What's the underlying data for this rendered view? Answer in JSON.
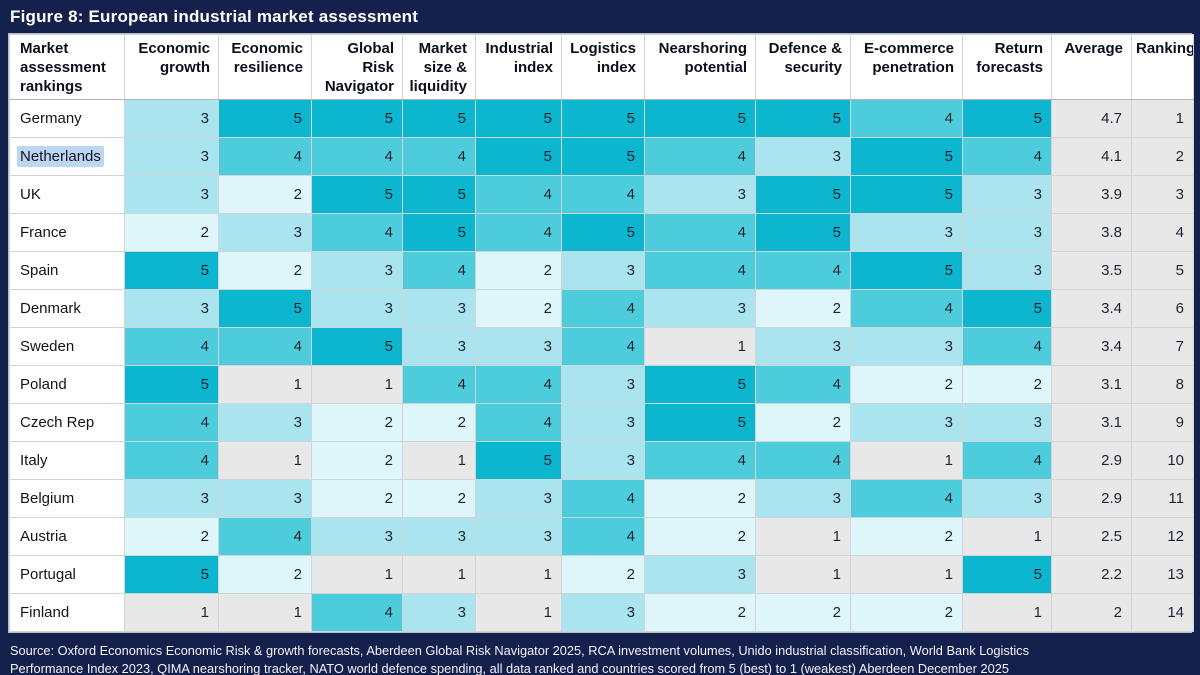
{
  "figure": {
    "title": "Figure 8: European industrial market assessment"
  },
  "source": {
    "lines": [
      "Source: Oxford Economics Economic Risk & growth forecasts, Aberdeen Global Risk Navigator 2025, RCA investment volumes, Unido industrial classification, World Bank Logistics",
      "Performance Index 2023, QIMA nearshoring tracker, NATO world defence spending, all data ranked and countries scored from 5 (best) to 1 (weakest) Aberdeen December 2025"
    ]
  },
  "colors": {
    "background_navy": "#15214D",
    "card_bg": "#FFFFFF",
    "summary_bg": "#E8E8E9",
    "selection_highlight": "#BCD7F2",
    "scale": {
      "1": "#E8E8E9",
      "2": "#DEF5FA",
      "3": "#AAE4EE",
      "4": "#4DCCDC",
      "5": "#0CB6CF"
    }
  },
  "table": {
    "headers": [
      "Market assessment rankings",
      "Economic growth",
      "Economic resilience",
      "Global Risk Navigator",
      "Market size & liquidity",
      "Industrial index",
      "Logistics index",
      "Nearshoring potential",
      "Defence & security",
      "E-commerce penetration",
      "Return forecasts",
      "Average",
      "Ranking"
    ],
    "rows": [
      {
        "country": "Germany",
        "highlighted": false,
        "scores": [
          3,
          5,
          5,
          5,
          5,
          5,
          5,
          5,
          4,
          5
        ],
        "average": "4.7",
        "ranking": "1"
      },
      {
        "country": "Netherlands",
        "highlighted": true,
        "scores": [
          3,
          4,
          4,
          4,
          5,
          5,
          4,
          3,
          5,
          4
        ],
        "average": "4.1",
        "ranking": "2"
      },
      {
        "country": "UK",
        "highlighted": false,
        "scores": [
          3,
          2,
          5,
          5,
          4,
          4,
          3,
          5,
          5,
          3
        ],
        "average": "3.9",
        "ranking": "3"
      },
      {
        "country": "France",
        "highlighted": false,
        "scores": [
          2,
          3,
          4,
          5,
          4,
          5,
          4,
          5,
          3,
          3
        ],
        "average": "3.8",
        "ranking": "4"
      },
      {
        "country": "Spain",
        "highlighted": false,
        "scores": [
          5,
          2,
          3,
          4,
          2,
          3,
          4,
          4,
          5,
          3
        ],
        "average": "3.5",
        "ranking": "5"
      },
      {
        "country": "Denmark",
        "highlighted": false,
        "scores": [
          3,
          5,
          3,
          3,
          2,
          4,
          3,
          2,
          4,
          5
        ],
        "average": "3.4",
        "ranking": "6"
      },
      {
        "country": "Sweden",
        "highlighted": false,
        "scores": [
          4,
          4,
          5,
          3,
          3,
          4,
          1,
          3,
          3,
          4
        ],
        "average": "3.4",
        "ranking": "7"
      },
      {
        "country": "Poland",
        "highlighted": false,
        "scores": [
          5,
          1,
          1,
          4,
          4,
          3,
          5,
          4,
          2,
          2
        ],
        "average": "3.1",
        "ranking": "8"
      },
      {
        "country": "Czech Rep",
        "highlighted": false,
        "scores": [
          4,
          3,
          2,
          2,
          4,
          3,
          5,
          2,
          3,
          3
        ],
        "average": "3.1",
        "ranking": "9"
      },
      {
        "country": "Italy",
        "highlighted": false,
        "scores": [
          4,
          1,
          2,
          1,
          5,
          3,
          4,
          4,
          1,
          4
        ],
        "average": "2.9",
        "ranking": "10"
      },
      {
        "country": "Belgium",
        "highlighted": false,
        "scores": [
          3,
          3,
          2,
          2,
          3,
          4,
          2,
          3,
          4,
          3
        ],
        "average": "2.9",
        "ranking": "11"
      },
      {
        "country": "Austria",
        "highlighted": false,
        "scores": [
          2,
          4,
          3,
          3,
          3,
          4,
          2,
          1,
          2,
          1
        ],
        "average": "2.5",
        "ranking": "12"
      },
      {
        "country": "Portugal",
        "highlighted": false,
        "scores": [
          5,
          2,
          1,
          1,
          1,
          2,
          3,
          1,
          1,
          5
        ],
        "average": "2.2",
        "ranking": "13"
      },
      {
        "country": "Finland",
        "highlighted": false,
        "scores": [
          1,
          1,
          4,
          3,
          1,
          3,
          2,
          2,
          2,
          1
        ],
        "average": "2",
        "ranking": "14"
      }
    ]
  },
  "chart_data": {
    "type": "heatmap",
    "title": "Figure 8: European industrial market assessment",
    "x_categories": [
      "Economic growth",
      "Economic resilience",
      "Global Risk Navigator",
      "Market size & liquidity",
      "Industrial index",
      "Logistics index",
      "Nearshoring potential",
      "Defence & security",
      "E-commerce penetration",
      "Return forecasts"
    ],
    "y_categories": [
      "Germany",
      "Netherlands",
      "UK",
      "France",
      "Spain",
      "Denmark",
      "Sweden",
      "Poland",
      "Czech Rep",
      "Italy",
      "Belgium",
      "Austria",
      "Portugal",
      "Finland"
    ],
    "values": [
      [
        3,
        5,
        5,
        5,
        5,
        5,
        5,
        5,
        4,
        5
      ],
      [
        3,
        4,
        4,
        4,
        5,
        5,
        4,
        3,
        5,
        4
      ],
      [
        3,
        2,
        5,
        5,
        4,
        4,
        3,
        5,
        5,
        3
      ],
      [
        2,
        3,
        4,
        5,
        4,
        5,
        4,
        5,
        3,
        3
      ],
      [
        5,
        2,
        3,
        4,
        2,
        3,
        4,
        4,
        5,
        3
      ],
      [
        3,
        5,
        3,
        3,
        2,
        4,
        3,
        2,
        4,
        5
      ],
      [
        4,
        4,
        5,
        3,
        3,
        4,
        1,
        3,
        3,
        4
      ],
      [
        5,
        1,
        1,
        4,
        4,
        3,
        5,
        4,
        2,
        2
      ],
      [
        4,
        3,
        2,
        2,
        4,
        3,
        5,
        2,
        3,
        3
      ],
      [
        4,
        1,
        2,
        1,
        5,
        3,
        4,
        4,
        1,
        4
      ],
      [
        3,
        3,
        2,
        2,
        3,
        4,
        2,
        3,
        4,
        3
      ],
      [
        2,
        4,
        3,
        3,
        3,
        4,
        2,
        1,
        2,
        1
      ],
      [
        5,
        2,
        1,
        1,
        1,
        2,
        3,
        1,
        1,
        5
      ],
      [
        1,
        1,
        4,
        3,
        1,
        3,
        2,
        2,
        2,
        1
      ]
    ],
    "averages": [
      4.7,
      4.1,
      3.9,
      3.8,
      3.5,
      3.4,
      3.4,
      3.1,
      3.1,
      2.9,
      2.9,
      2.5,
      2.2,
      2
    ],
    "rankings": [
      1,
      2,
      3,
      4,
      5,
      6,
      7,
      8,
      9,
      10,
      11,
      12,
      13,
      14
    ],
    "value_range": [
      1,
      5
    ],
    "scale_note": "Countries scored from 5 (best) to 1 (weakest); darker cyan = higher score, grey = 1"
  }
}
